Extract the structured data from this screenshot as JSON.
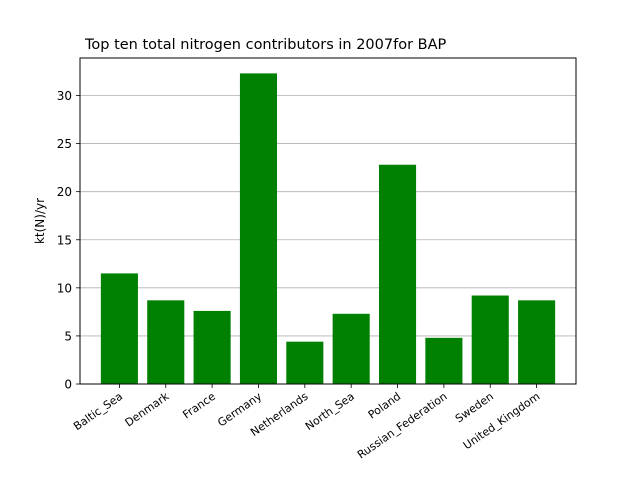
{
  "chart_data": {
    "type": "bar",
    "title": "Top ten total nitrogen contributors in 2007for  BAP",
    "xlabel": "",
    "ylabel": "kt(N)/yr",
    "categories": [
      "Baltic_Sea",
      "Denmark",
      "France",
      "Germany",
      "Netherlands",
      "North_Sea",
      "Poland",
      "Russian_Federation",
      "Sweden",
      "United_Kingdom"
    ],
    "values": [
      11.5,
      8.7,
      7.6,
      32.3,
      4.4,
      7.3,
      22.8,
      4.8,
      9.2,
      8.7
    ],
    "ylim": [
      0,
      33.9
    ],
    "yticks": [
      0,
      5,
      10,
      15,
      20,
      25,
      30
    ],
    "grid": "y",
    "bar_color": "#008000",
    "xtick_rotation": 35
  }
}
